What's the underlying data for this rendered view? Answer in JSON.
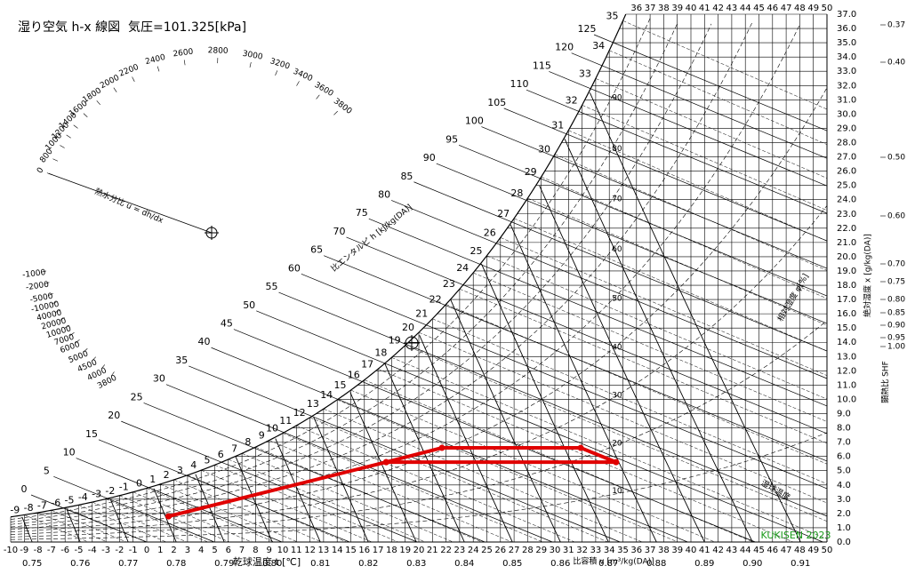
{
  "chart_data": {
    "type": "psychrometric",
    "title": "湿り空気 h-x 線図  気圧=101.325[kPa]",
    "xlabel": "乾球温度 t [℃]",
    "ylabel": "絶対湿度 x [g/kg(DA)]",
    "volume_label": "比容積 v [m³/kg(DA)]",
    "enthalpy_label": "比エンタルピ h [kJ/kg(DA)]",
    "rh_label": "相対湿度 φ[%]",
    "wet_bulb_label": "湿球温度",
    "ratio_label": "熱水分比 u = dh/dx",
    "shf_label": "顕熱比 SHF",
    "credit": "KUKISEN 2023",
    "xlim": [
      -10,
      50
    ],
    "xticks": [
      -10,
      -9,
      -8,
      -7,
      -6,
      -5,
      -4,
      -3,
      -2,
      -1,
      0,
      1,
      2,
      3,
      4,
      5,
      6,
      7,
      8,
      9,
      10,
      11,
      12,
      13,
      14,
      15,
      16,
      17,
      18,
      19,
      20,
      21,
      22,
      23,
      24,
      25,
      26,
      27,
      28,
      29,
      30,
      31,
      32,
      33,
      34,
      35,
      36,
      37,
      38,
      39,
      40,
      41,
      42,
      43,
      44,
      45,
      46,
      47,
      48,
      49,
      50
    ],
    "ylim": [
      0,
      37
    ],
    "yticks": [
      {
        "value": 0,
        "label": "0.0"
      },
      {
        "value": 1,
        "label": "1.0"
      },
      {
        "value": 2,
        "label": "2.0"
      },
      {
        "value": 3,
        "label": "3.0"
      },
      {
        "value": 4,
        "label": "4.0"
      },
      {
        "value": 5,
        "label": "5.0"
      },
      {
        "value": 6,
        "label": "6.0"
      },
      {
        "value": 7,
        "label": "7.0"
      },
      {
        "value": 8,
        "label": "8.0"
      },
      {
        "value": 9,
        "label": "9.0"
      },
      {
        "value": 10,
        "label": "10.0"
      },
      {
        "value": 11,
        "label": "11.0"
      },
      {
        "value": 12,
        "label": "12.0"
      },
      {
        "value": 13,
        "label": "13.0"
      },
      {
        "value": 14,
        "label": "14.0"
      },
      {
        "value": 15,
        "label": "15.0"
      },
      {
        "value": 16,
        "label": "16.0"
      },
      {
        "value": 17,
        "label": "17.0"
      },
      {
        "value": 18,
        "label": "18.0"
      },
      {
        "value": 19,
        "label": "19.0"
      },
      {
        "value": 20,
        "label": "20.0"
      },
      {
        "value": 21,
        "label": "21.0"
      },
      {
        "value": 22,
        "label": "22.0"
      },
      {
        "value": 23,
        "label": "23.0"
      },
      {
        "value": 24,
        "label": "24.0"
      },
      {
        "value": 25,
        "label": "25.0"
      },
      {
        "value": 26,
        "label": "26.0"
      },
      {
        "value": 27,
        "label": "27.0"
      },
      {
        "value": 28,
        "label": "28.0"
      },
      {
        "value": 29,
        "label": "29.0"
      },
      {
        "value": 30,
        "label": "30.0"
      },
      {
        "value": 31,
        "label": "31.0"
      },
      {
        "value": 32,
        "label": "32.0"
      },
      {
        "value": 33,
        "label": "33.0"
      },
      {
        "value": 34,
        "label": "34.0"
      },
      {
        "value": 35,
        "label": "35.0"
      },
      {
        "value": 36,
        "label": "36.0"
      },
      {
        "value": 37,
        "label": "37.0"
      }
    ],
    "enthalpy_ticks": [
      0,
      5,
      10,
      15,
      20,
      25,
      30,
      35,
      40,
      45,
      50,
      55,
      60,
      65,
      70,
      75,
      80,
      85,
      90,
      95,
      100,
      105,
      110,
      115,
      120,
      125
    ],
    "wet_bulb_ticks": [
      -9,
      -8,
      -7,
      -6,
      -5,
      -4,
      -3,
      -2,
      -1,
      0,
      1,
      2,
      3,
      4,
      5,
      6,
      7,
      8,
      9,
      10,
      11,
      12,
      13,
      14,
      15,
      16,
      17,
      18,
      19,
      20,
      21,
      22,
      23,
      24,
      25,
      26,
      27,
      28,
      29,
      30,
      31,
      32,
      33,
      34,
      35
    ],
    "volume_ticks": [
      0.75,
      0.76,
      0.77,
      0.78,
      0.79,
      {
        "value": 0.8,
        "label": "0.80"
      },
      0.81,
      0.82,
      0.83,
      0.84,
      0.85,
      0.86,
      0.87,
      0.88,
      0.89,
      {
        "value": 0.9,
        "label": "0.90"
      },
      0.91
    ],
    "rh_curves": [
      10,
      20,
      30,
      40,
      50,
      60,
      70,
      80,
      90
    ],
    "ratio_ticks": [
      3800,
      3600,
      3400,
      3200,
      3000,
      2800,
      2600,
      2400,
      2200,
      2000,
      1800,
      1600,
      1400,
      1200,
      1000,
      800,
      0,
      -1000,
      -2000,
      -5000,
      -10000,
      40000,
      20000,
      10000,
      7000,
      6000,
      5000,
      4500,
      4000,
      3800
    ],
    "shf_ticks": [
      0.37,
      {
        "value": 0.4,
        "label": "0.40"
      },
      {
        "value": 0.5,
        "label": "0.50"
      },
      {
        "value": 0.6,
        "label": "0.60"
      },
      {
        "value": 0.7,
        "label": "0.70"
      },
      0.75,
      {
        "value": 0.8,
        "label": "0.80"
      },
      0.85,
      {
        "value": 0.9,
        "label": "0.90"
      },
      0.95,
      {
        "value": 1,
        "label": "1.00"
      }
    ],
    "process": {
      "color": "#e00000",
      "x": [
        1.6,
        17.6,
        21.7,
        31.9,
        34.5,
        17.6
      ],
      "y": [
        1.8,
        5.6,
        6.6,
        6.6,
        5.6,
        5.6
      ]
    }
  }
}
